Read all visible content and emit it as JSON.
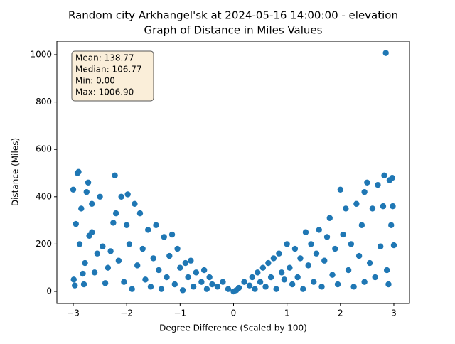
{
  "chart_data": {
    "type": "scatter",
    "title": "Random city Arkhangel'sk at 2024-05-16 14:00:00  - elevation",
    "subtitle": "Graph of Distance in Miles Values",
    "xlabel": "Degree Difference (Scaled by 100)",
    "ylabel": "Distance (Miles)",
    "annotation": [
      "Mean: 138.77",
      "Median: 106.77",
      "Min: 0.00",
      "Max: 1006.90"
    ],
    "color": "#1f77b4",
    "xlim": [
      -3.306,
      3.293
    ],
    "ylim": [
      -51,
      1057
    ],
    "xticks": [
      {
        "value": -3,
        "label": "−3"
      },
      {
        "value": -2,
        "label": "−2"
      },
      {
        "value": -1,
        "label": "−1"
      },
      0,
      1,
      2,
      3
    ],
    "yticks": [
      0,
      200,
      400,
      600,
      800,
      1000
    ],
    "x": [
      -3.0,
      -2.99,
      -2.97,
      -2.95,
      -2.92,
      -2.9,
      -2.88,
      -2.85,
      -2.82,
      -2.8,
      -2.78,
      -2.75,
      -2.72,
      -2.7,
      -2.65,
      -2.6,
      -2.55,
      -2.5,
      -2.45,
      -2.4,
      -2.35,
      -2.3,
      -2.25,
      -2.22,
      -2.2,
      -2.15,
      -2.1,
      -2.05,
      -2.0,
      -1.98,
      -1.95,
      -1.9,
      -1.85,
      -1.8,
      -1.75,
      -1.7,
      -1.65,
      -1.6,
      -1.55,
      -1.5,
      -1.45,
      -1.4,
      -1.35,
      -1.3,
      -1.25,
      -1.2,
      -1.15,
      -1.1,
      -1.05,
      -1.0,
      -0.95,
      -0.9,
      -0.85,
      -0.8,
      -0.75,
      -0.7,
      -0.6,
      -0.55,
      -0.5,
      -0.45,
      -0.4,
      -0.3,
      -0.2,
      -0.1,
      0.0,
      0.05,
      0.1,
      0.2,
      0.3,
      0.35,
      0.4,
      0.45,
      0.5,
      0.55,
      0.6,
      0.65,
      0.7,
      0.75,
      0.8,
      0.85,
      0.9,
      0.95,
      1.0,
      1.05,
      1.1,
      1.15,
      1.2,
      1.25,
      1.3,
      1.35,
      1.4,
      1.45,
      1.5,
      1.55,
      1.6,
      1.65,
      1.7,
      1.75,
      1.8,
      1.85,
      1.9,
      1.95,
      2.0,
      2.05,
      2.1,
      2.15,
      2.2,
      2.25,
      2.3,
      2.35,
      2.4,
      2.45,
      2.5,
      2.55,
      2.6,
      2.65,
      2.7,
      2.75,
      2.8,
      2.82,
      2.85,
      2.87,
      2.9,
      2.92,
      2.95,
      2.98,
      3.0,
      2.97,
      -2.65,
      2.45
    ],
    "y": [
      430,
      50,
      25,
      285,
      500,
      505,
      200,
      350,
      75,
      30,
      120,
      420,
      460,
      235,
      370,
      80,
      160,
      400,
      190,
      35,
      100,
      170,
      290,
      490,
      330,
      130,
      400,
      40,
      280,
      410,
      200,
      10,
      370,
      110,
      330,
      180,
      50,
      260,
      20,
      140,
      280,
      90,
      10,
      230,
      60,
      150,
      240,
      30,
      180,
      100,
      5,
      120,
      60,
      130,
      20,
      80,
      40,
      90,
      10,
      60,
      30,
      20,
      40,
      10,
      0,
      5,
      15,
      40,
      25,
      60,
      10,
      80,
      40,
      100,
      20,
      120,
      60,
      140,
      10,
      160,
      80,
      50,
      200,
      100,
      30,
      180,
      60,
      140,
      10,
      250,
      110,
      200,
      40,
      160,
      260,
      20,
      130,
      230,
      310,
      70,
      180,
      30,
      430,
      240,
      350,
      90,
      200,
      20,
      370,
      150,
      280,
      420,
      460,
      120,
      350,
      60,
      450,
      190,
      360,
      490,
      1007,
      90,
      30,
      470,
      280,
      360,
      195,
      480,
      250,
      40
    ]
  }
}
